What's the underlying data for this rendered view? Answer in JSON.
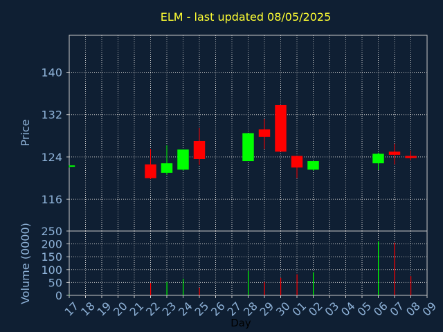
{
  "title": "ELM - last updated 08/05/2025",
  "colors": {
    "background": "#0f1f33",
    "axis": "#c8c8c8",
    "grid": "#c8c8c8",
    "text": "#8fb3d9",
    "title": "#ffff33",
    "up": "#00ff00",
    "down": "#ff0000"
  },
  "chart_data": [
    {
      "type": "candlestick",
      "ylabel": "Price",
      "yticks": [
        116,
        124,
        132,
        140
      ],
      "ylim": [
        110,
        147
      ],
      "grid": true,
      "candles": [
        {
          "day": "17",
          "open": 122.2,
          "high": 122.4,
          "low": 122.0,
          "close": 122.4
        },
        {
          "day": "22",
          "open": 122.6,
          "high": 125.5,
          "low": 119.8,
          "close": 120.0
        },
        {
          "day": "23",
          "open": 121.0,
          "high": 126.2,
          "low": 120.6,
          "close": 122.8
        },
        {
          "day": "24",
          "open": 121.6,
          "high": 125.4,
          "low": 121.4,
          "close": 125.4
        },
        {
          "day": "25",
          "open": 127.0,
          "high": 129.5,
          "low": 122.5,
          "close": 123.6
        },
        {
          "day": "28",
          "open": 123.2,
          "high": 128.5,
          "low": 123.2,
          "close": 128.5
        },
        {
          "day": "29",
          "open": 129.2,
          "high": 131.2,
          "low": 125.5,
          "close": 127.8
        },
        {
          "day": "30",
          "open": 133.8,
          "high": 133.8,
          "low": 125.0,
          "close": 125.0
        },
        {
          "day": "01",
          "open": 124.2,
          "high": 124.2,
          "low": 120.0,
          "close": 122.0
        },
        {
          "day": "02",
          "open": 121.6,
          "high": 123.2,
          "low": 121.4,
          "close": 123.2
        },
        {
          "day": "06",
          "open": 122.8,
          "high": 124.8,
          "low": 121.5,
          "close": 124.6
        },
        {
          "day": "07",
          "open": 125.0,
          "high": 126.5,
          "low": 122.6,
          "close": 124.4
        },
        {
          "day": "08",
          "open": 124.2,
          "high": 125.2,
          "low": 123.4,
          "close": 123.8
        }
      ]
    },
    {
      "type": "bar",
      "ylabel": "Volume (0000)",
      "xlabel": "Day",
      "yticks": [
        0,
        50,
        100,
        150,
        200,
        250
      ],
      "ylim": [
        0,
        250
      ],
      "grid": true,
      "categories": [
        "17",
        "18",
        "19",
        "20",
        "21",
        "22",
        "23",
        "24",
        "25",
        "26",
        "27",
        "28",
        "29",
        "30",
        "01",
        "02",
        "03",
        "04",
        "05",
        "06",
        "07",
        "08",
        "09"
      ],
      "volumes": [
        {
          "day": "17",
          "value": 2,
          "color": "up"
        },
        {
          "day": "22",
          "value": 48,
          "color": "down"
        },
        {
          "day": "23",
          "value": 52,
          "color": "up"
        },
        {
          "day": "24",
          "value": 65,
          "color": "up"
        },
        {
          "day": "25",
          "value": 30,
          "color": "down"
        },
        {
          "day": "28",
          "value": 95,
          "color": "up"
        },
        {
          "day": "29",
          "value": 52,
          "color": "down"
        },
        {
          "day": "30",
          "value": 68,
          "color": "down"
        },
        {
          "day": "01",
          "value": 82,
          "color": "down"
        },
        {
          "day": "02",
          "value": 90,
          "color": "up"
        },
        {
          "day": "06",
          "value": 210,
          "color": "up"
        },
        {
          "day": "07",
          "value": 205,
          "color": "down"
        },
        {
          "day": "08",
          "value": 75,
          "color": "down"
        }
      ]
    }
  ]
}
